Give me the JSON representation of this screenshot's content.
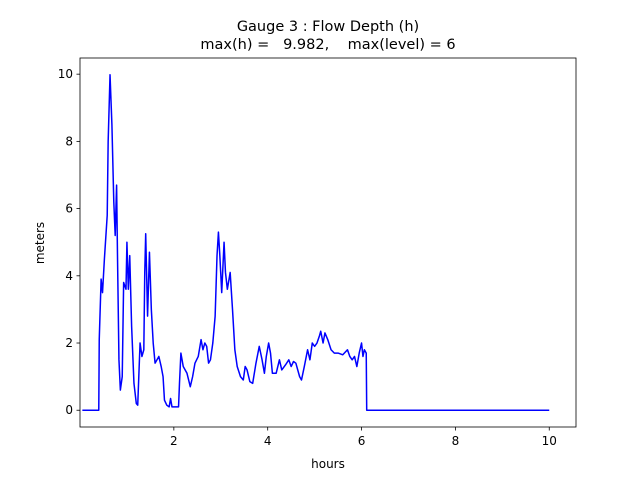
{
  "chart_data": {
    "type": "line",
    "title": "Gauge 3 : Flow Depth (h)",
    "subtitle": "max(h) =   9.982,    max(level) = 6",
    "x_label": "hours",
    "y_label": "meters",
    "xlim": [
      0,
      10.57
    ],
    "ylim": [
      -0.499,
      10.481
    ],
    "xticks": [
      2,
      4,
      6,
      8,
      10
    ],
    "yticks": [
      0,
      2,
      4,
      6,
      8,
      10
    ],
    "x": [
      0.05,
      0.4,
      0.41,
      0.45,
      0.48,
      0.52,
      0.58,
      0.6,
      0.64,
      0.68,
      0.72,
      0.75,
      0.78,
      0.8,
      0.83,
      0.86,
      0.9,
      0.93,
      0.98,
      1.0,
      1.03,
      1.06,
      1.1,
      1.15,
      1.2,
      1.23,
      1.28,
      1.32,
      1.36,
      1.38,
      1.4,
      1.44,
      1.48,
      1.52,
      1.56,
      1.6,
      1.68,
      1.73,
      1.77,
      1.8,
      1.85,
      1.9,
      1.93,
      1.96,
      2.1,
      2.12,
      2.15,
      2.2,
      2.28,
      2.35,
      2.4,
      2.45,
      2.52,
      2.58,
      2.62,
      2.66,
      2.7,
      2.74,
      2.78,
      2.83,
      2.88,
      2.92,
      2.95,
      2.98,
      3.02,
      3.07,
      3.1,
      3.14,
      3.2,
      3.25,
      3.3,
      3.35,
      3.42,
      3.48,
      3.52,
      3.56,
      3.62,
      3.68,
      3.75,
      3.82,
      3.88,
      3.93,
      3.97,
      4.02,
      4.06,
      4.1,
      4.18,
      4.25,
      4.3,
      4.38,
      4.45,
      4.5,
      4.55,
      4.6,
      4.68,
      4.72,
      4.78,
      4.85,
      4.9,
      4.95,
      5.0,
      5.05,
      5.1,
      5.13,
      5.18,
      5.22,
      5.28,
      5.35,
      5.42,
      5.5,
      5.6,
      5.7,
      5.75,
      5.8,
      5.85,
      5.9,
      5.95,
      6.0,
      6.03,
      6.06,
      6.1,
      6.11,
      10.0
    ],
    "series": [
      {
        "color": "#0000ff",
        "values": [
          0,
          0,
          2.1,
          3.9,
          3.5,
          4.5,
          5.8,
          8.0,
          9.982,
          8.5,
          6.2,
          5.2,
          6.7,
          4.5,
          1.5,
          0.6,
          1.0,
          3.8,
          3.6,
          5.0,
          3.6,
          4.6,
          2.5,
          0.8,
          0.2,
          0.15,
          2.0,
          1.6,
          1.8,
          4.1,
          5.25,
          2.8,
          4.7,
          3.0,
          2.0,
          1.4,
          1.6,
          1.3,
          1.0,
          0.3,
          0.15,
          0.1,
          0.35,
          0.1,
          0.1,
          0.8,
          1.7,
          1.3,
          1.1,
          0.7,
          1.0,
          1.4,
          1.6,
          2.1,
          1.8,
          2.0,
          1.9,
          1.4,
          1.5,
          2.0,
          2.8,
          4.6,
          5.3,
          4.6,
          3.5,
          5.0,
          4.1,
          3.6,
          4.1,
          3.0,
          1.8,
          1.3,
          1.0,
          0.9,
          1.3,
          1.2,
          0.85,
          0.8,
          1.4,
          1.9,
          1.5,
          1.1,
          1.6,
          2.0,
          1.7,
          1.1,
          1.1,
          1.5,
          1.2,
          1.35,
          1.5,
          1.3,
          1.45,
          1.4,
          1.0,
          0.9,
          1.3,
          1.8,
          1.5,
          2.0,
          1.9,
          2.0,
          2.2,
          2.35,
          2.0,
          2.3,
          2.1,
          1.8,
          1.7,
          1.7,
          1.65,
          1.8,
          1.6,
          1.5,
          1.6,
          1.3,
          1.7,
          2.0,
          1.6,
          1.8,
          1.7,
          0,
          0
        ]
      }
    ]
  }
}
